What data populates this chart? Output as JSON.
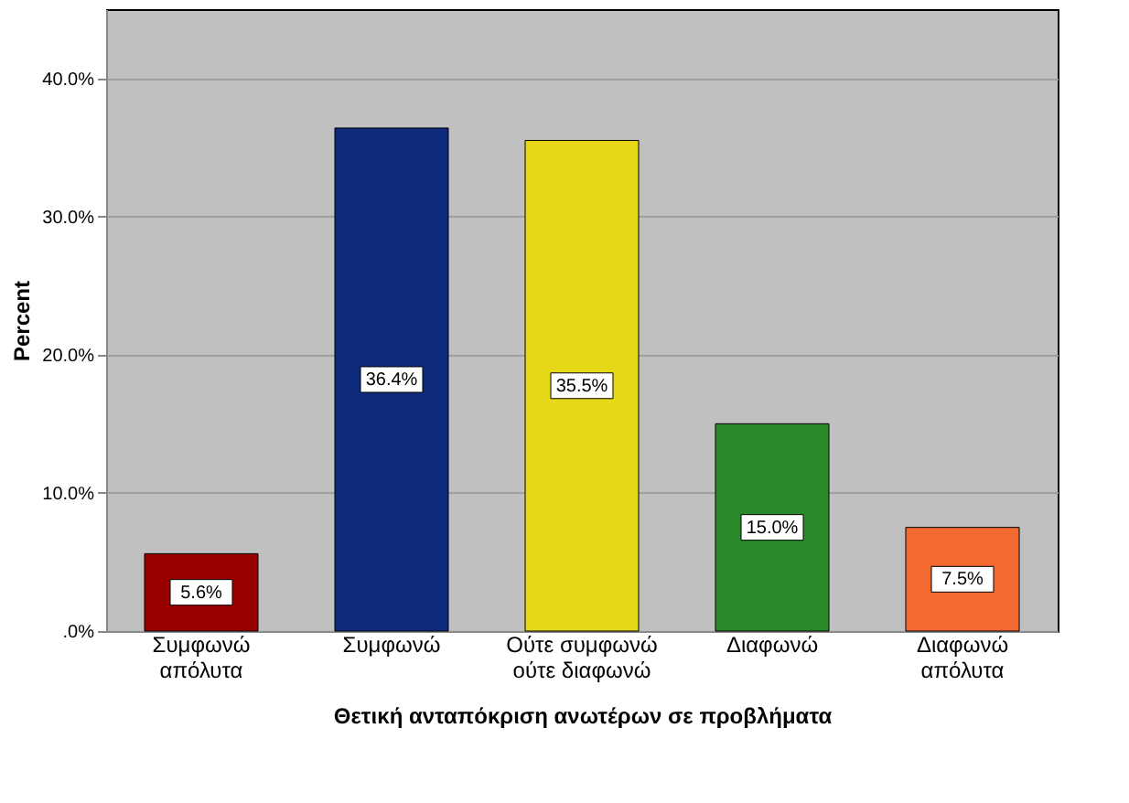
{
  "chart_data": {
    "type": "bar",
    "xlabel": "Θετική ανταπόκριση ανωτέρων σε προβλήματα",
    "ylabel": "Percent",
    "categories": [
      "Συμφωνώ απόλυτα",
      "Συμφωνώ",
      "Ούτε συμφωνώ ούτε διαφωνώ",
      "Διαφωνώ",
      "Διαφωνώ απόλυτα"
    ],
    "values": [
      5.6,
      36.4,
      35.5,
      15.0,
      7.5
    ],
    "value_labels": [
      "5.6%",
      "36.4%",
      "35.5%",
      "15.0%",
      "7.5%"
    ],
    "colors": [
      "#990000",
      "#0f2a7a",
      "#e6d817",
      "#2a8a2a",
      "#f26a30"
    ],
    "ylim": [
      0,
      45
    ],
    "yticks": [
      {
        "value": 0,
        "label": ".0%"
      },
      {
        "value": 10,
        "label": "10.0%"
      },
      {
        "value": 20,
        "label": "20.0%"
      },
      {
        "value": 30,
        "label": "30.0%"
      },
      {
        "value": 40,
        "label": "40.0%"
      }
    ],
    "grid": "y"
  }
}
